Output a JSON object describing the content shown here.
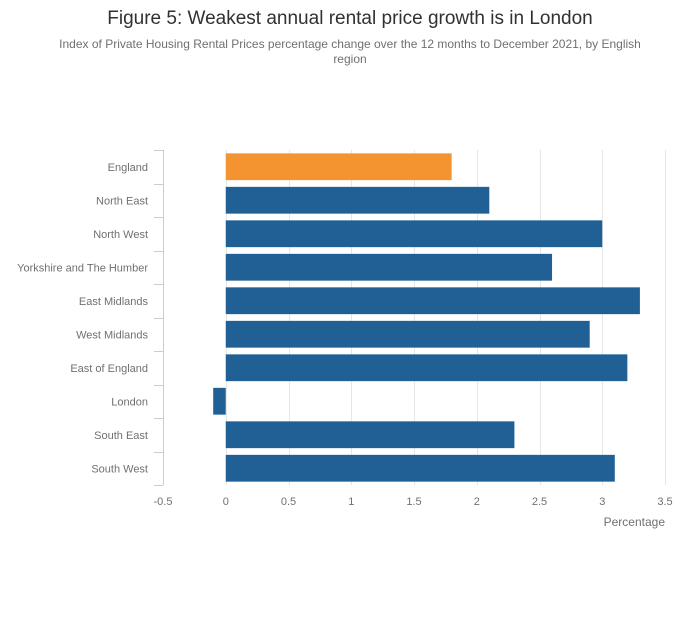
{
  "chart_data": {
    "type": "bar",
    "orientation": "horizontal",
    "title": "Figure 5: Weakest annual rental price growth is in London",
    "subtitle_lines": [
      "Index of Private Housing Rental Prices percentage change over the 12 months to December 2021, by English",
      "region"
    ],
    "categories": [
      "England",
      "North East",
      "North West",
      "Yorkshire and The Humber",
      "East Midlands",
      "West Midlands",
      "East of England",
      "London",
      "South East",
      "South West"
    ],
    "values": [
      1.8,
      2.1,
      3.0,
      2.6,
      3.3,
      2.9,
      3.2,
      -0.1,
      2.3,
      3.1
    ],
    "highlight_index": 0,
    "xlabel": "Percentage",
    "ylabel": "",
    "xlim": [
      -0.5,
      3.5
    ],
    "xticks": [
      -0.5,
      0,
      0.5,
      1,
      1.5,
      2,
      2.5,
      3,
      3.5
    ],
    "xtick_labels": [
      "-0.5",
      "0",
      "0.5",
      "1",
      "1.5",
      "2",
      "2.5",
      "3",
      "3.5"
    ],
    "grid": true,
    "colors": {
      "highlight": "#f39431",
      "default": "#206095"
    }
  }
}
